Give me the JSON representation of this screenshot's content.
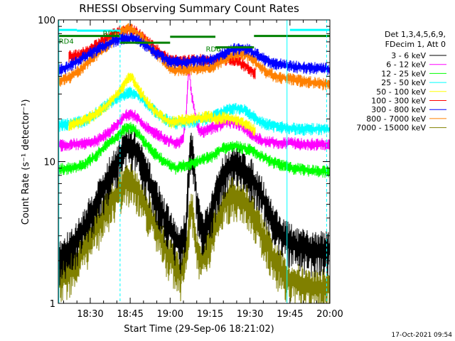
{
  "chart_data": {
    "type": "line",
    "title": "RHESSI Observing Summary Count Rates",
    "xlabel": "Start Time (29-Sep-06 18:21:02)",
    "ylabel": "Count Rate (s⁻¹ detector⁻¹)",
    "y_scale": "log",
    "ylim": [
      1,
      100
    ],
    "xlim_minutes": [
      18.0,
      120.0
    ],
    "x_ticks": [
      {
        "label": "18:30",
        "minute": 30
      },
      {
        "label": "18:45",
        "minute": 45
      },
      {
        "label": "19:00",
        "minute": 60
      },
      {
        "label": "19:15",
        "minute": 75
      },
      {
        "label": "19:30",
        "minute": 90
      },
      {
        "label": "19:45",
        "minute": 105
      },
      {
        "label": "20:00",
        "minute": 120
      }
    ],
    "y_ticks": [
      {
        "label": "1",
        "value": 1
      },
      {
        "label": "10",
        "value": 10
      },
      {
        "label": "100",
        "value": 100
      }
    ],
    "legend_header": [
      "Det 1,3,4,5,6,9,",
      "FDecim 1, Att 0"
    ],
    "legend_position": "right",
    "footer_timestamp": "17-Oct-2021 09:54",
    "series": [
      {
        "name": "3 - 6 keV",
        "color": "#000000",
        "x": [
          18,
          24,
          28,
          32,
          36,
          40,
          43,
          45,
          47,
          50,
          54,
          58,
          62,
          64,
          66,
          67,
          68,
          69,
          70,
          72,
          75,
          78,
          81,
          84,
          87,
          90,
          92,
          95,
          98,
          101,
          104,
          108,
          112,
          116,
          120
        ],
        "y": [
          2.0,
          2.6,
          3.5,
          5.0,
          7.0,
          10.0,
          12.5,
          12.8,
          12.0,
          9.0,
          6.0,
          4.0,
          2.8,
          2.5,
          3.5,
          8.0,
          14.0,
          9.0,
          5.0,
          3.2,
          3.8,
          6.5,
          9.0,
          9.5,
          9.0,
          8.0,
          7.0,
          5.5,
          4.0,
          3.2,
          2.8,
          2.5,
          2.4,
          2.4,
          2.4
        ]
      },
      {
        "name": "6 - 12 keV",
        "color": "#ff00ff",
        "x": [
          18,
          22,
          28,
          32,
          36,
          40,
          43,
          45,
          47,
          50,
          54,
          58,
          60,
          62,
          64,
          65,
          66,
          67,
          68,
          70,
          72,
          75,
          78,
          81,
          84,
          87,
          90,
          92,
          95,
          98,
          102,
          106,
          110,
          116,
          120
        ],
        "y": [
          13.0,
          13.2,
          13.5,
          14.0,
          15.5,
          18.0,
          21.0,
          22.0,
          21.0,
          18.0,
          16.0,
          14.5,
          14.0,
          13.5,
          14.0,
          15.0,
          20.0,
          45.0,
          30.0,
          18.0,
          16.0,
          17.0,
          18.0,
          19.0,
          19.0,
          18.0,
          16.0,
          15.0,
          14.0,
          13.8,
          13.5,
          13.5,
          13.3,
          13.3,
          13.2
        ]
      },
      {
        "name": "12 - 25 keV",
        "color": "#00ff00",
        "x": [
          18,
          22,
          28,
          32,
          36,
          40,
          43,
          45,
          47,
          50,
          54,
          58,
          62,
          66,
          70,
          73,
          76,
          80,
          84,
          88,
          91,
          94,
          98,
          102,
          106,
          110,
          114,
          120
        ],
        "y": [
          8.8,
          9.0,
          9.5,
          11.0,
          13.0,
          15.0,
          17.0,
          17.5,
          16.5,
          14.0,
          11.5,
          10.0,
          9.0,
          9.5,
          10.0,
          10.5,
          11.0,
          12.5,
          13.0,
          12.5,
          12.0,
          11.0,
          10.0,
          9.5,
          9.0,
          8.8,
          8.6,
          8.5
        ]
      },
      {
        "name": "25 - 50 keV",
        "color": "#00ffff",
        "x": [
          18,
          22,
          28,
          32,
          36,
          40,
          43,
          45,
          47,
          50,
          54,
          58,
          62,
          66,
          70,
          73,
          76,
          80,
          84,
          88,
          91,
          94,
          98,
          102,
          106,
          110,
          114,
          120
        ],
        "y": [
          18.0,
          18.5,
          19.5,
          22.0,
          25.0,
          28.0,
          30.0,
          31.0,
          30.0,
          27.0,
          23.0,
          20.0,
          18.5,
          19.0,
          19.5,
          20.0,
          21.0,
          22.5,
          24.0,
          23.0,
          21.0,
          19.0,
          18.0,
          17.5,
          17.2,
          17.0,
          17.0,
          17.0
        ]
      },
      {
        "name": "50 - 100 keV",
        "color": "#ffff00",
        "x": [
          22,
          26,
          30,
          34,
          38,
          42,
          44,
          45,
          46,
          48,
          51,
          54,
          57,
          59,
          60,
          64,
          68,
          72,
          75,
          76,
          80,
          84,
          88,
          90,
          91,
          92
        ],
        "y": [
          18.0,
          19.0,
          20.5,
          23.0,
          27.0,
          33.0,
          38.0,
          40.0,
          38.0,
          33.0,
          27.0,
          23.0,
          20.5,
          19.5,
          19.0,
          19.5,
          20.0,
          20.5,
          21.0,
          20.0,
          20.5,
          20.0,
          18.5,
          17.5,
          17.0,
          16.5
        ]
      },
      {
        "name": "100 - 300 keV",
        "color": "#ff0000",
        "x": [
          22,
          26,
          30,
          34,
          38,
          42,
          44,
          46,
          48,
          51,
          54,
          57,
          59,
          60,
          64,
          68,
          72,
          75,
          76,
          80,
          84,
          88,
          90,
          91,
          92
        ],
        "y": [
          55.0,
          57.0,
          62.0,
          70.0,
          78.0,
          84.0,
          86.0,
          85.0,
          80.0,
          72.0,
          64.0,
          57.0,
          54.0,
          52.0,
          51.0,
          52.0,
          52.5,
          53.0,
          52.0,
          53.0,
          52.0,
          48.0,
          45.0,
          43.0,
          42.0
        ]
      },
      {
        "name": "300 - 800 keV",
        "color": "#0000ff",
        "x": [
          18,
          22,
          26,
          30,
          34,
          38,
          42,
          44,
          46,
          48,
          51,
          54,
          57,
          59,
          60,
          64,
          68,
          72,
          75,
          76,
          80,
          84,
          88,
          90,
          91,
          92,
          96,
          100,
          106,
          112,
          120
        ],
        "y": [
          44.0,
          47.0,
          52.0,
          58.0,
          64.0,
          70.0,
          74.0,
          75.0,
          74.0,
          72.0,
          66.0,
          60.0,
          55.0,
          52.0,
          51.0,
          50.0,
          51.0,
          52.0,
          52.0,
          53.0,
          58.0,
          62.0,
          63.0,
          61.0,
          59.0,
          58.0,
          52.0,
          49.0,
          47.0,
          46.0,
          45.0
        ]
      },
      {
        "name": "800 - 7000 keV",
        "color": "#ff8000",
        "x": [
          18,
          22,
          26,
          30,
          34,
          38,
          42,
          44,
          46,
          48,
          51,
          54,
          57,
          59,
          60,
          64,
          68,
          72,
          75,
          76,
          80,
          84,
          88,
          90,
          91,
          92,
          96,
          100,
          106,
          112,
          120
        ],
        "y": [
          37.0,
          39.0,
          44.0,
          52.0,
          60.0,
          70.0,
          82.0,
          87.0,
          85.0,
          80.0,
          70.0,
          60.0,
          53.0,
          48.0,
          45.0,
          44.0,
          45.0,
          46.0,
          46.0,
          47.0,
          52.0,
          57.0,
          58.0,
          55.0,
          52.0,
          50.0,
          43.0,
          40.0,
          38.0,
          36.5,
          35.0
        ]
      },
      {
        "name": "7000 - 15000 keV",
        "color": "#808000",
        "x": [
          18,
          24,
          28,
          32,
          36,
          40,
          43,
          45,
          47,
          50,
          54,
          58,
          62,
          64,
          66,
          67,
          68,
          69,
          70,
          72,
          75,
          78,
          81,
          84,
          87,
          90,
          92,
          95,
          98,
          101,
          104,
          108,
          112,
          116,
          120
        ],
        "y": [
          1.4,
          1.8,
          2.5,
          3.3,
          4.5,
          6.0,
          7.0,
          7.2,
          6.8,
          5.2,
          3.6,
          2.5,
          1.8,
          1.6,
          2.2,
          3.5,
          5.0,
          3.5,
          2.5,
          2.0,
          2.6,
          4.0,
          5.5,
          5.8,
          5.5,
          4.8,
          4.0,
          3.0,
          2.2,
          1.8,
          1.5,
          1.4,
          1.3,
          1.3,
          1.3
        ]
      }
    ],
    "attenuator_segments": [
      {
        "x": [
          18,
          25
        ],
        "y": 85,
        "color": "#00ffff"
      },
      {
        "x": [
          25,
          41.2
        ],
        "y": 84,
        "color": "#00ffff"
      },
      {
        "x": [
          105,
          120
        ],
        "y": 85,
        "color": "#00ffff"
      },
      {
        "x": [
          18,
          41.2
        ],
        "y": 77,
        "color": "#008000"
      },
      {
        "x": [
          41.2,
          60
        ],
        "y": 69,
        "color": "#008000"
      },
      {
        "x": [
          60,
          77
        ],
        "y": 76,
        "color": "#008000"
      },
      {
        "x": [
          77,
          91.5
        ],
        "y": 64,
        "color": "#008000"
      },
      {
        "x": [
          91.5,
          120
        ],
        "y": 77,
        "color": "#008000"
      }
    ],
    "solid_vlines": [
      {
        "x": 18.2,
        "color": "#00ffff"
      },
      {
        "x": 103.9,
        "color": "#00ffff"
      }
    ],
    "dashed_vlines": [
      {
        "x": 41.2,
        "color": "#00ffff"
      },
      {
        "x": 118.8,
        "color": "#00ffff"
      }
    ],
    "annotations": [
      {
        "text": "RD4",
        "x": 21.0,
        "y": 68.0
      },
      {
        "text": "RD0",
        "x": 37.5,
        "y": 77.0
      },
      {
        "text": "RD6",
        "x": 76.2,
        "y": 60.0
      }
    ]
  }
}
